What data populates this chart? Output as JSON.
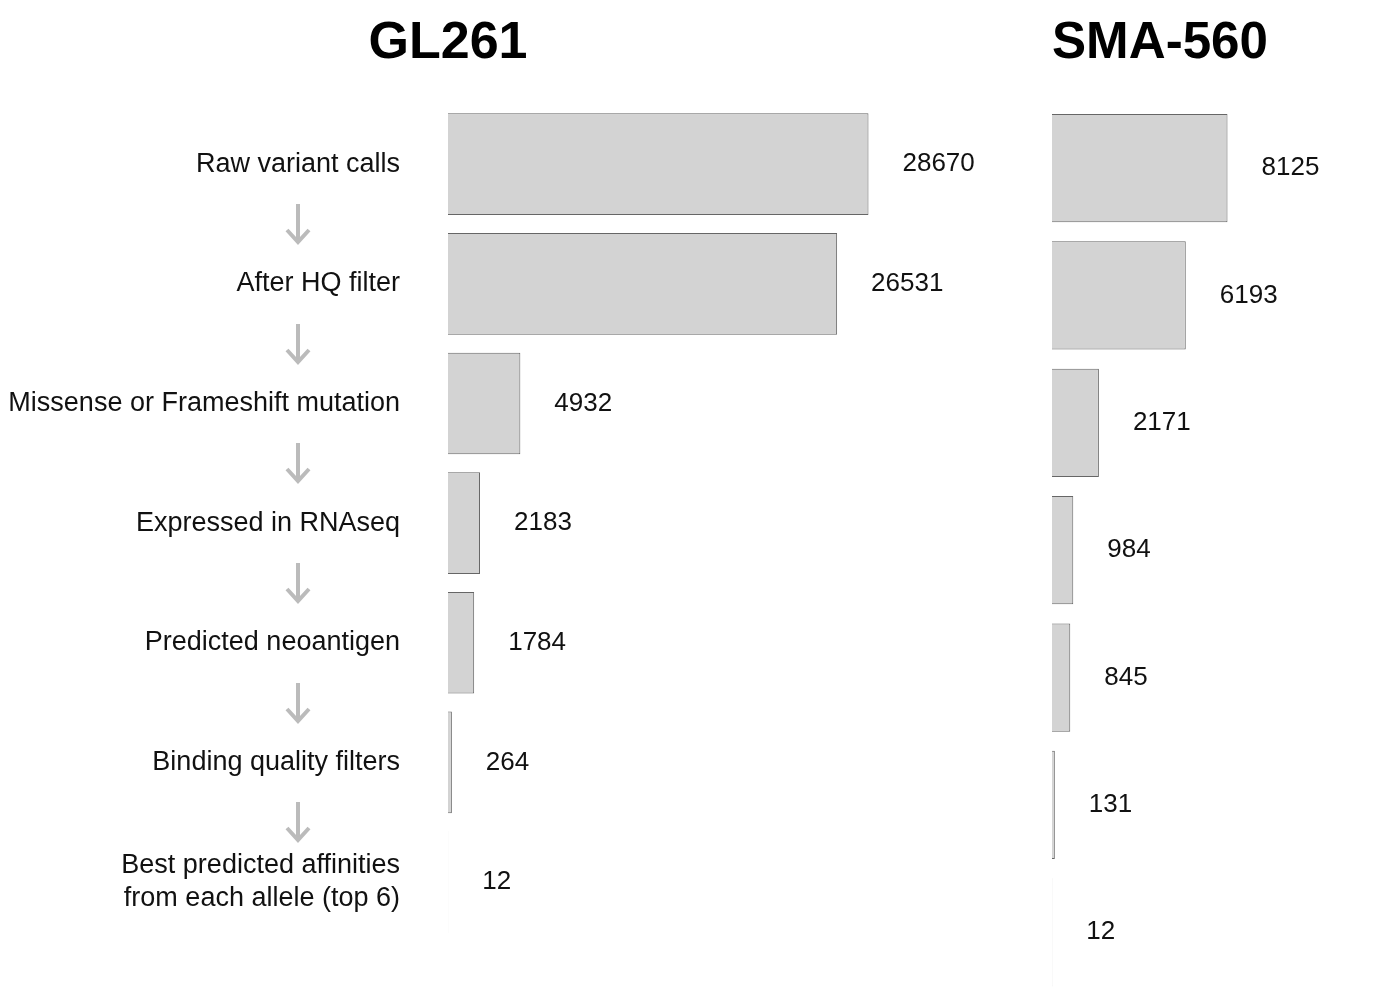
{
  "chart_data": [
    {
      "type": "bar",
      "orientation": "horizontal",
      "title": "GL261",
      "categories": [
        "Raw variant calls",
        "After HQ filter",
        "Missense or Frameshift mutation",
        "Expressed in RNAseq",
        "Predicted neoantigen",
        "Binding quality filters",
        "Best predicted affinities from each allele (top 6)"
      ],
      "values": [
        28670,
        26531,
        4932,
        2183,
        1784,
        264,
        12
      ],
      "color": "#d3d3d3",
      "data_labels": true,
      "tick_labels": "y"
    },
    {
      "type": "bar",
      "orientation": "horizontal",
      "title": "SMA-560",
      "categories": [
        null,
        null,
        null,
        null,
        null,
        null,
        null
      ],
      "values": [
        8125,
        6193,
        2171,
        984,
        845,
        131,
        12
      ],
      "color": "#d3d3d3",
      "data_labels": true,
      "tick_labels": false
    }
  ]
}
